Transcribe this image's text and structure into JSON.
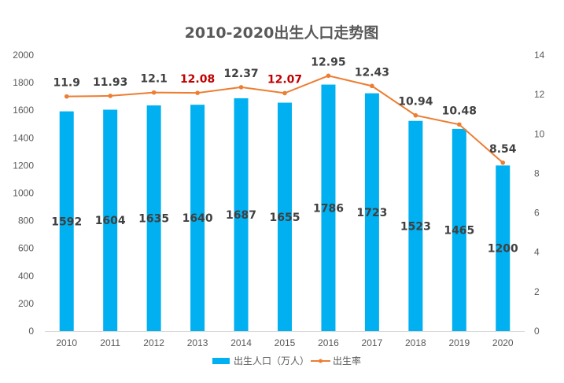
{
  "chart_data": {
    "type": "bar+line",
    "title": "2010-2020出生人口走势图",
    "categories": [
      "2010",
      "2011",
      "2012",
      "2013",
      "2014",
      "2015",
      "2016",
      "2017",
      "2018",
      "2019",
      "2020"
    ],
    "series": [
      {
        "name": "出生人口（万人）",
        "type": "bar",
        "axis": "left",
        "values": [
          1592,
          1604,
          1635,
          1640,
          1687,
          1655,
          1786,
          1723,
          1523,
          1465,
          1200
        ],
        "labels": [
          "1592",
          "1604",
          "1635",
          "1640",
          "1687",
          "1655",
          "1786",
          "1723",
          "1523",
          "1465",
          "1200"
        ]
      },
      {
        "name": "出生率",
        "type": "line",
        "axis": "right",
        "values": [
          11.9,
          11.93,
          12.1,
          12.08,
          12.37,
          12.07,
          12.95,
          12.43,
          10.94,
          10.48,
          8.54
        ],
        "labels": [
          "11.9",
          "11.93",
          "12.1",
          "12.08",
          "12.37",
          "12.07",
          "12.95",
          "12.43",
          "10.94",
          "10.48",
          "8.54"
        ],
        "highlighted": [
          false,
          false,
          false,
          true,
          false,
          true,
          false,
          false,
          false,
          false,
          false
        ]
      }
    ],
    "y_left": {
      "min": 0,
      "max": 2000,
      "step": 200,
      "ticks": [
        "0",
        "200",
        "400",
        "600",
        "800",
        "1000",
        "1200",
        "1400",
        "1600",
        "1800",
        "2000"
      ]
    },
    "y_right": {
      "min": 0,
      "max": 14,
      "step": 2,
      "ticks": [
        "0",
        "2",
        "4",
        "6",
        "8",
        "10",
        "12",
        "14"
      ]
    },
    "grid": false,
    "legend": {
      "position": "bottom",
      "items": [
        "出生人口（万人）",
        "出生率"
      ]
    }
  },
  "colors": {
    "bar": "#00B0F0",
    "line": "#ED7D31",
    "text": "#404040",
    "highlight": "#C00000",
    "axis": "#D9D9D9",
    "tick": "#595959"
  }
}
